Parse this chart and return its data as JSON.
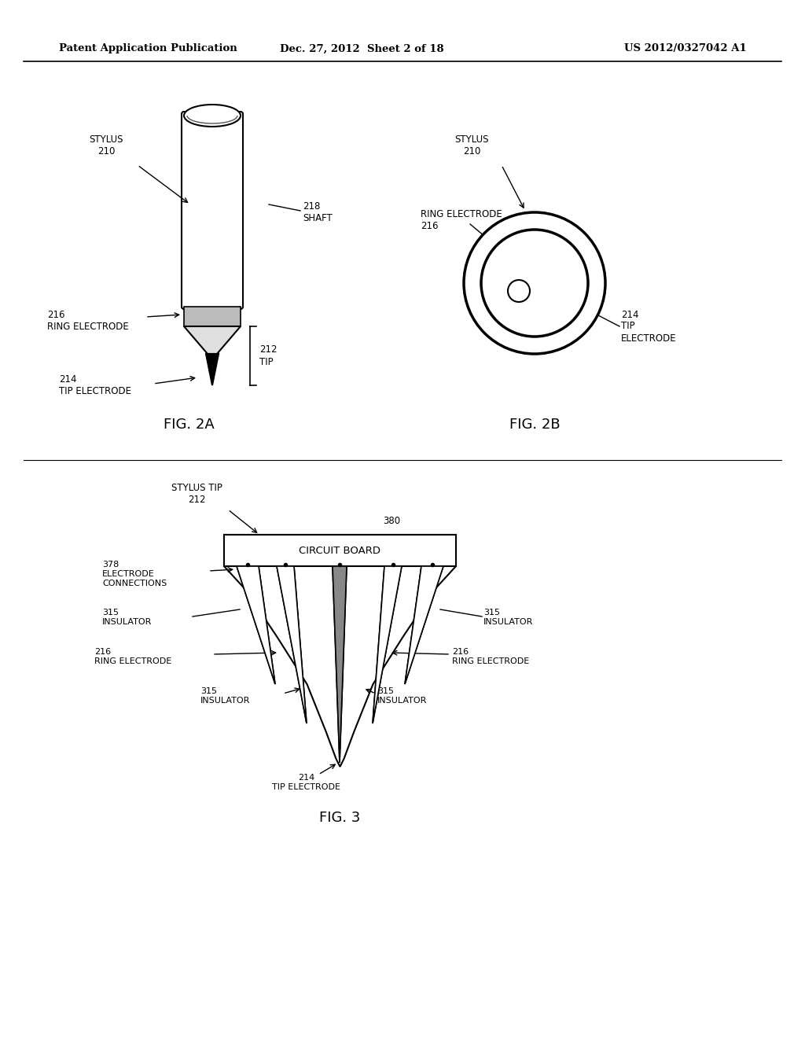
{
  "bg_color": "#ffffff",
  "header_left": "Patent Application Publication",
  "header_center": "Dec. 27, 2012  Sheet 2 of 18",
  "header_right": "US 2012/0327042 A1",
  "fig2a_label": "FIG. 2A",
  "fig2b_label": "FIG. 2B",
  "fig3_label": "FIG. 3"
}
